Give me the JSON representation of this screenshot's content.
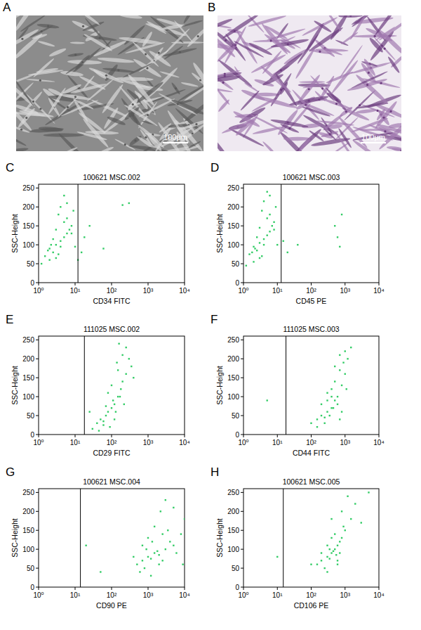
{
  "images": [
    {
      "label": "A",
      "scale_bar": "100μm"
    },
    {
      "label": "B",
      "scale_bar": "100μm"
    }
  ],
  "chart_data": [
    {
      "type": "scatter",
      "panel": "C",
      "title": "100621 MSC.002",
      "x_label": "CD34 FITC",
      "y_label": "SSC-Height",
      "log": "x",
      "xlim": [
        1,
        10000
      ],
      "ylim": [
        0,
        260
      ],
      "xticks": [
        {
          "value": 1,
          "label": "10⁰"
        },
        {
          "value": 10,
          "label": "10¹"
        },
        {
          "value": 100,
          "label": "10²"
        },
        {
          "value": 1000,
          "label": "10³"
        },
        {
          "value": 10000,
          "label": "10⁴"
        }
      ],
      "yticks": [
        0,
        50,
        100,
        150,
        200,
        250
      ],
      "gate": 12,
      "color": "#33cc66",
      "x": [
        1.5,
        2,
        2.5,
        3,
        3.5,
        4,
        5,
        6,
        7,
        8,
        2,
        3,
        4,
        5,
        6,
        1.2,
        1.8,
        2.5,
        3.5,
        9,
        4,
        6,
        8,
        10,
        2.2,
        3,
        5,
        15,
        25,
        60,
        200,
        300,
        12,
        18
      ],
      "y": [
        70,
        90,
        80,
        100,
        75,
        110,
        120,
        130,
        140,
        150,
        60,
        65,
        95,
        160,
        170,
        50,
        85,
        115,
        180,
        190,
        200,
        210,
        130,
        95,
        100,
        140,
        230,
        80,
        150,
        90,
        205,
        210,
        60,
        120
      ]
    },
    {
      "type": "scatter",
      "panel": "D",
      "title": "100621 MSC.003",
      "x_label": "CD45 PE",
      "y_label": "SSC-Height",
      "log": "x",
      "xlim": [
        1,
        10000
      ],
      "ylim": [
        0,
        260
      ],
      "xticks": [
        {
          "value": 1,
          "label": "10⁰"
        },
        {
          "value": 10,
          "label": "10¹"
        },
        {
          "value": 100,
          "label": "10²"
        },
        {
          "value": 1000,
          "label": "10³"
        },
        {
          "value": 10000,
          "label": "10⁴"
        }
      ],
      "yticks": [
        0,
        50,
        100,
        150,
        200,
        250
      ],
      "gate": 13,
      "color": "#33cc66",
      "x": [
        1.5,
        2,
        2.5,
        3,
        3.5,
        4,
        5,
        6,
        7,
        8,
        2,
        3,
        4,
        5,
        6,
        1.2,
        1.8,
        2.5,
        3.5,
        9,
        4,
        6,
        8,
        10,
        2.2,
        3,
        5,
        20,
        40,
        500,
        600,
        800,
        700,
        15
      ],
      "y": [
        75,
        95,
        85,
        105,
        70,
        115,
        125,
        135,
        150,
        160,
        55,
        65,
        100,
        170,
        180,
        45,
        80,
        120,
        190,
        200,
        215,
        230,
        140,
        100,
        90,
        145,
        240,
        80,
        100,
        150,
        120,
        180,
        95,
        110
      ]
    },
    {
      "type": "scatter",
      "panel": "E",
      "title": "111025 MSC.002",
      "x_label": "CD29 FITC",
      "y_label": "SSC-Height",
      "log": "x",
      "xlim": [
        1,
        10000
      ],
      "ylim": [
        0,
        260
      ],
      "xticks": [
        {
          "value": 1,
          "label": "10⁰"
        },
        {
          "value": 10,
          "label": "10¹"
        },
        {
          "value": 100,
          "label": "10²"
        },
        {
          "value": 1000,
          "label": "10³"
        },
        {
          "value": 10000,
          "label": "10⁴"
        }
      ],
      "yticks": [
        0,
        50,
        100,
        150,
        200,
        250
      ],
      "gate": 18,
      "color": "#33cc66",
      "x": [
        30,
        40,
        50,
        60,
        70,
        80,
        100,
        120,
        150,
        180,
        200,
        250,
        300,
        80,
        100,
        150,
        200,
        90,
        110,
        130,
        60,
        70,
        250,
        350,
        400,
        45,
        160,
        140,
        120,
        170,
        25,
        220
      ],
      "y": [
        15,
        30,
        40,
        25,
        50,
        60,
        70,
        80,
        100,
        120,
        140,
        160,
        200,
        110,
        130,
        170,
        210,
        20,
        90,
        60,
        35,
        75,
        230,
        180,
        150,
        10,
        240,
        190,
        40,
        100,
        60,
        80
      ]
    },
    {
      "type": "scatter",
      "panel": "F",
      "title": "111025 MSC.003",
      "x_label": "CD44 FITC",
      "y_label": "SSC-Height",
      "log": "x",
      "xlim": [
        1,
        10000
      ],
      "ylim": [
        0,
        260
      ],
      "xticks": [
        {
          "value": 1,
          "label": "10⁰"
        },
        {
          "value": 10,
          "label": "10¹"
        },
        {
          "value": 100,
          "label": "10²"
        },
        {
          "value": 1000,
          "label": "10³"
        },
        {
          "value": 10000,
          "label": "10⁴"
        }
      ],
      "yticks": [
        0,
        50,
        100,
        150,
        200,
        250
      ],
      "gate": 18,
      "color": "#33cc66",
      "x": [
        100,
        150,
        200,
        250,
        300,
        400,
        500,
        600,
        800,
        1000,
        1200,
        300,
        400,
        500,
        700,
        900,
        200,
        250,
        350,
        450,
        600,
        800,
        1500,
        1000,
        150,
        700,
        500,
        400,
        300,
        1100,
        5,
        700
      ],
      "y": [
        30,
        40,
        50,
        45,
        60,
        70,
        90,
        100,
        130,
        160,
        200,
        110,
        120,
        140,
        170,
        190,
        80,
        30,
        50,
        70,
        80,
        60,
        230,
        220,
        20,
        210,
        180,
        100,
        90,
        120,
        90,
        40
      ]
    },
    {
      "type": "scatter",
      "panel": "G",
      "title": "100621 MSC.004",
      "x_label": "CD90 PE",
      "y_label": "SSC-Height",
      "log": "x",
      "xlim": [
        1,
        10000
      ],
      "ylim": [
        0,
        260
      ],
      "xticks": [
        {
          "value": 1,
          "label": "10⁰"
        },
        {
          "value": 10,
          "label": "10¹"
        },
        {
          "value": 100,
          "label": "10²"
        },
        {
          "value": 1000,
          "label": "10³"
        },
        {
          "value": 10000,
          "label": "10⁴"
        }
      ],
      "yticks": [
        0,
        50,
        100,
        150,
        200,
        250
      ],
      "gate": 14,
      "color": "#33cc66",
      "x": [
        500,
        700,
        1000,
        1500,
        2000,
        3000,
        4000,
        5000,
        8000,
        10000,
        800,
        1200,
        1800,
        2500,
        3500,
        600,
        900,
        1300,
        2200,
        6000,
        1000,
        1500,
        2000,
        3000,
        400,
        700,
        5000,
        9000,
        20,
        50,
        1200,
        2500
      ],
      "y": [
        60,
        70,
        80,
        90,
        85,
        100,
        120,
        110,
        140,
        180,
        50,
        75,
        95,
        70,
        150,
        40,
        100,
        120,
        200,
        90,
        130,
        160,
        60,
        230,
        80,
        110,
        210,
        60,
        110,
        40,
        30,
        140
      ]
    },
    {
      "type": "scatter",
      "panel": "H",
      "title": "100621 MSC.005",
      "x_label": "CD106 PE",
      "y_label": "SSC-Height",
      "log": "x",
      "xlim": [
        1,
        10000
      ],
      "ylim": [
        0,
        260
      ],
      "xticks": [
        {
          "value": 1,
          "label": "10⁰"
        },
        {
          "value": 10,
          "label": "10¹"
        },
        {
          "value": 100,
          "label": "10²"
        },
        {
          "value": 1000,
          "label": "10³"
        },
        {
          "value": 10000,
          "label": "10⁴"
        }
      ],
      "yticks": [
        0,
        50,
        100,
        150,
        200,
        250
      ],
      "gate": 15,
      "color": "#33cc66",
      "x": [
        150,
        200,
        300,
        400,
        500,
        600,
        800,
        1000,
        1500,
        2000,
        250,
        350,
        450,
        550,
        700,
        900,
        300,
        400,
        500,
        600,
        200,
        300,
        800,
        1200,
        3000,
        5000,
        100,
        400,
        600,
        10,
        700,
        350
      ],
      "y": [
        60,
        70,
        80,
        90,
        100,
        110,
        130,
        150,
        180,
        220,
        50,
        75,
        95,
        85,
        120,
        160,
        110,
        130,
        140,
        70,
        90,
        40,
        200,
        240,
        170,
        250,
        60,
        180,
        60,
        80,
        90,
        100
      ]
    }
  ]
}
